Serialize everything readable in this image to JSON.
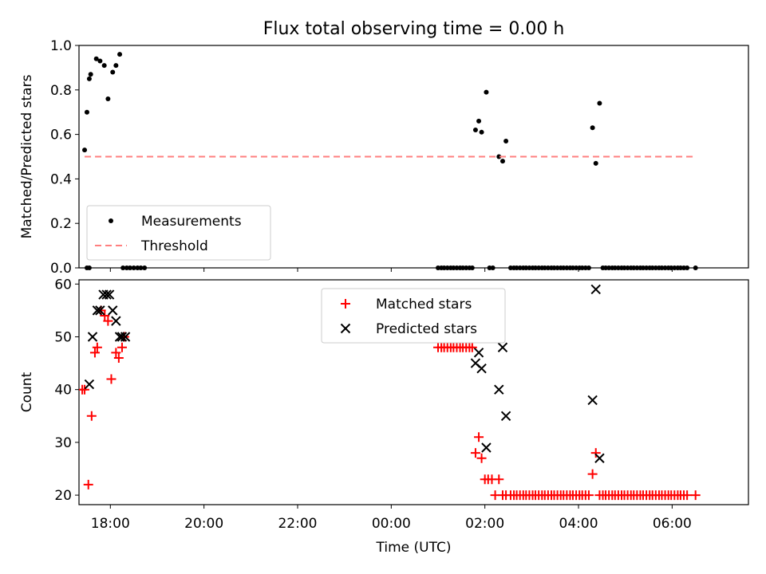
{
  "chart_data": [
    {
      "type": "scatter",
      "title": "Flux total observing time = 0.00 h",
      "xlabel": "",
      "ylabel": "Matched/Predicted stars",
      "xlim": [
        -6.67,
        7.63
      ],
      "ylim": [
        0.0,
        1.0
      ],
      "yticks": [
        0.0,
        0.2,
        0.4,
        0.6,
        0.8,
        1.0
      ],
      "ytick_labels": [
        "0.0",
        "0.2",
        "0.4",
        "0.6",
        "0.8",
        "1.0"
      ],
      "xticks": [
        -6,
        -4,
        -2,
        0,
        2,
        4,
        6
      ],
      "legend_position": "bottom-left",
      "series": [
        {
          "name": "Measurements",
          "marker": "dot",
          "color": "#000000",
          "x": [
            -6.55,
            -6.5,
            -6.45,
            -6.42,
            -6.3,
            -6.22,
            -6.13,
            -6.05,
            -5.95,
            -5.88,
            -5.8,
            -5.73,
            -5.65,
            -5.58,
            -5.5,
            -5.42,
            -5.35,
            -5.27,
            -6.5,
            -6.45,
            1.0,
            1.07,
            1.13,
            1.2,
            1.27,
            1.33,
            1.4,
            1.47,
            1.53,
            1.6,
            1.67,
            1.73,
            1.8,
            1.87,
            1.93,
            2.03,
            2.1,
            2.17,
            2.3,
            2.38,
            2.45,
            2.55,
            2.62,
            2.68,
            2.75,
            2.82,
            2.88,
            2.95,
            3.02,
            3.08,
            3.15,
            3.22,
            3.28,
            3.35,
            3.42,
            3.48,
            3.55,
            3.62,
            3.68,
            3.75,
            3.82,
            3.88,
            3.95,
            4.02,
            4.08,
            4.15,
            4.22,
            4.3,
            4.37,
            4.45,
            4.52,
            4.58,
            4.65,
            4.72,
            4.78,
            4.85,
            4.92,
            4.98,
            5.05,
            5.12,
            5.18,
            5.25,
            5.32,
            5.38,
            5.45,
            5.52,
            5.58,
            5.65,
            5.72,
            5.78,
            5.85,
            5.92,
            5.98,
            6.05,
            6.12,
            6.18,
            6.25,
            6.32,
            6.5
          ],
          "y": [
            0.53,
            0.7,
            0.85,
            0.87,
            0.94,
            0.93,
            0.91,
            0.76,
            0.88,
            0.91,
            0.96,
            0.0,
            0.0,
            0.0,
            0.0,
            0.0,
            0.0,
            0.0,
            0.0,
            0.0,
            0.0,
            0.0,
            0.0,
            0.0,
            0.0,
            0.0,
            0.0,
            0.0,
            0.0,
            0.0,
            0.0,
            0.0,
            0.62,
            0.66,
            0.61,
            0.79,
            0.0,
            0.0,
            0.5,
            0.48,
            0.57,
            0.0,
            0.0,
            0.0,
            0.0,
            0.0,
            0.0,
            0.0,
            0.0,
            0.0,
            0.0,
            0.0,
            0.0,
            0.0,
            0.0,
            0.0,
            0.0,
            0.0,
            0.0,
            0.0,
            0.0,
            0.0,
            0.0,
            0.0,
            0.0,
            0.0,
            0.0,
            0.63,
            0.47,
            0.74,
            0.0,
            0.0,
            0.0,
            0.0,
            0.0,
            0.0,
            0.0,
            0.0,
            0.0,
            0.0,
            0.0,
            0.0,
            0.0,
            0.0,
            0.0,
            0.0,
            0.0,
            0.0,
            0.0,
            0.0,
            0.0,
            0.0,
            0.0,
            0.0,
            0.0,
            0.0,
            0.0,
            0.0,
            0.0
          ]
        },
        {
          "name": "Threshold",
          "marker": "dashed-line",
          "color": "#ff7f7f",
          "x": [
            -6.55,
            6.5
          ],
          "y": [
            0.5,
            0.5
          ]
        }
      ]
    },
    {
      "type": "scatter",
      "title": "",
      "xlabel": "Time (UTC)",
      "ylabel": "Count",
      "xlim": [
        -6.67,
        7.63
      ],
      "ylim": [
        18.2,
        60.8
      ],
      "yticks": [
        20,
        30,
        40,
        50,
        60
      ],
      "ytick_labels": [
        "20",
        "30",
        "40",
        "50",
        "60"
      ],
      "xticks": [
        -6,
        -4,
        -2,
        0,
        2,
        4,
        6
      ],
      "xtick_labels": [
        "18:00",
        "20:00",
        "22:00",
        "00:00",
        "02:00",
        "04:00",
        "06:00"
      ],
      "legend_position": "top-center",
      "series": [
        {
          "name": "Matched stars",
          "marker": "plus",
          "color": "#ff0000",
          "x": [
            -6.6,
            -6.55,
            -6.47,
            -6.4,
            -6.33,
            -6.28,
            -6.2,
            -6.12,
            -6.05,
            -5.98,
            -5.88,
            -5.82,
            -5.75,
            -5.7,
            1.0,
            1.07,
            1.13,
            1.2,
            1.27,
            1.33,
            1.4,
            1.47,
            1.53,
            1.6,
            1.67,
            1.73,
            1.8,
            1.87,
            1.93,
            2.0,
            2.07,
            2.15,
            2.22,
            2.3,
            2.38,
            2.45,
            2.55,
            2.62,
            2.68,
            2.75,
            2.82,
            2.88,
            2.95,
            3.02,
            3.08,
            3.15,
            3.22,
            3.28,
            3.35,
            3.42,
            3.48,
            3.55,
            3.62,
            3.68,
            3.75,
            3.82,
            3.88,
            3.95,
            4.02,
            4.08,
            4.15,
            4.22,
            4.3,
            4.37,
            4.45,
            4.52,
            4.58,
            4.65,
            4.72,
            4.78,
            4.85,
            4.92,
            4.98,
            5.05,
            5.12,
            5.18,
            5.25,
            5.32,
            5.38,
            5.45,
            5.52,
            5.58,
            5.65,
            5.72,
            5.78,
            5.85,
            5.92,
            5.98,
            6.05,
            6.12,
            6.18,
            6.25,
            6.32,
            6.5
          ],
          "y": [
            40,
            40,
            22,
            35,
            47,
            48,
            55,
            54,
            53,
            42,
            47,
            46,
            48,
            50,
            48,
            48,
            48,
            48,
            48,
            48,
            48,
            48,
            48,
            48,
            48,
            48,
            28,
            31,
            27,
            23,
            23,
            23,
            20,
            23,
            20,
            20,
            20,
            20,
            20,
            20,
            20,
            20,
            20,
            20,
            20,
            20,
            20,
            20,
            20,
            20,
            20,
            20,
            20,
            20,
            20,
            20,
            20,
            20,
            20,
            20,
            20,
            20,
            24,
            28,
            20,
            20,
            20,
            20,
            20,
            20,
            20,
            20,
            20,
            20,
            20,
            20,
            20,
            20,
            20,
            20,
            20,
            20,
            20,
            20,
            20,
            20,
            20,
            20,
            20,
            20,
            20,
            20,
            20,
            20
          ]
        },
        {
          "name": "Predicted stars",
          "marker": "x",
          "color": "#000000",
          "x": [
            -6.45,
            -6.38,
            -6.28,
            -6.22,
            -6.15,
            -6.08,
            -6.02,
            -5.95,
            -5.88,
            -5.8,
            -5.75,
            -5.68,
            1.8,
            1.87,
            1.93,
            2.03,
            2.3,
            2.38,
            2.45,
            4.3,
            4.37,
            4.45
          ],
          "y": [
            41,
            50,
            55,
            55,
            58,
            58,
            58,
            55,
            53,
            50,
            50,
            50,
            45,
            47,
            44,
            29,
            40,
            48,
            35,
            38,
            59,
            27
          ]
        }
      ]
    }
  ]
}
